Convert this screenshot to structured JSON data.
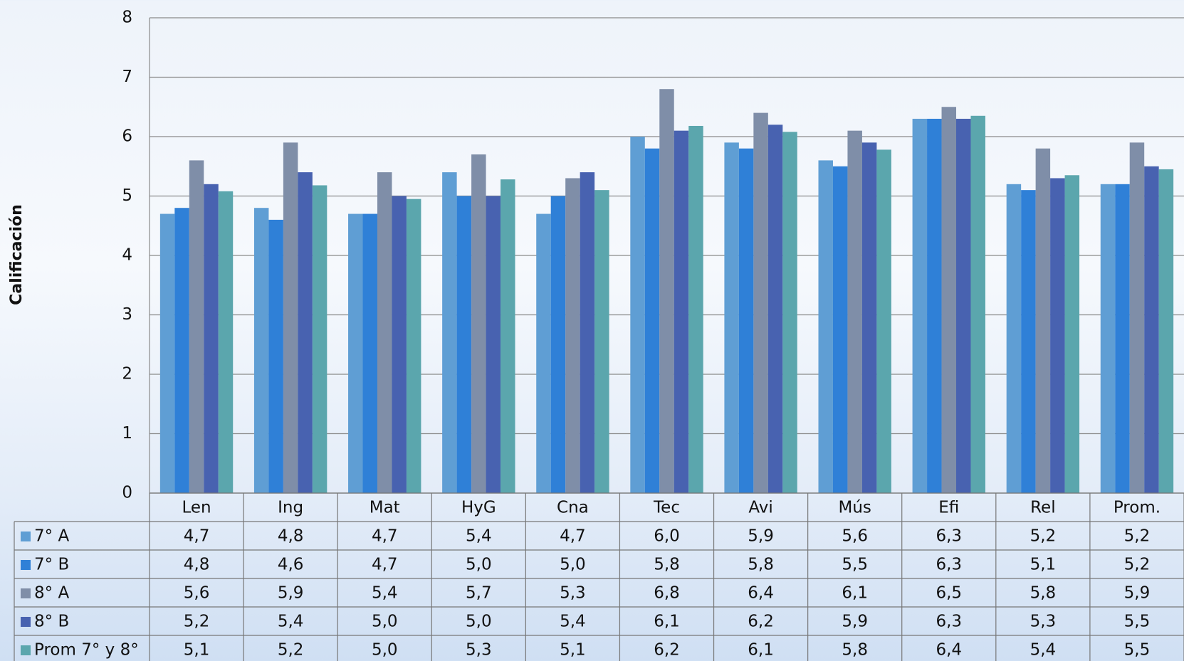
{
  "chart_data": {
    "type": "bar",
    "y_label": "Calificación",
    "categories": [
      "Len",
      "Ing",
      "Mat",
      "HyG",
      "Cna",
      "Tec",
      "Avi",
      "Mús",
      "Efi",
      "Rel",
      "Prom."
    ],
    "series": [
      {
        "name": "7° A",
        "color": "#5f9ed4",
        "values": [
          4.7,
          4.8,
          4.7,
          5.4,
          4.7,
          6.0,
          5.9,
          5.6,
          6.3,
          5.2,
          5.2
        ],
        "value_labels": [
          "4,7",
          "4,8",
          "4,7",
          "5,4",
          "4,7",
          "6,0",
          "5,9",
          "5,6",
          "6,3",
          "5,2",
          "5,2"
        ]
      },
      {
        "name": "7° B",
        "color": "#2f80d7",
        "values": [
          4.8,
          4.6,
          4.7,
          5.0,
          5.0,
          5.8,
          5.8,
          5.5,
          6.3,
          5.1,
          5.2
        ],
        "value_labels": [
          "4,8",
          "4,6",
          "4,7",
          "5,0",
          "5,0",
          "5,8",
          "5,8",
          "5,5",
          "6,3",
          "5,1",
          "5,2"
        ]
      },
      {
        "name": "8° A",
        "color": "#7f8ea8",
        "values": [
          5.6,
          5.9,
          5.4,
          5.7,
          5.3,
          6.8,
          6.4,
          6.1,
          6.5,
          5.8,
          5.9
        ],
        "value_labels": [
          "5,6",
          "5,9",
          "5,4",
          "5,7",
          "5,3",
          "6,8",
          "6,4",
          "6,1",
          "6,5",
          "5,8",
          "5,9"
        ]
      },
      {
        "name": "8° B",
        "color": "#4862b0",
        "values": [
          5.2,
          5.4,
          5.0,
          5.0,
          5.4,
          6.1,
          6.2,
          5.9,
          6.3,
          5.3,
          5.5
        ],
        "value_labels": [
          "5,2",
          "5,4",
          "5,0",
          "5,0",
          "5,4",
          "6,1",
          "6,2",
          "5,9",
          "6,3",
          "5,3",
          "5,5"
        ]
      },
      {
        "name": "Prom 7° y 8°",
        "color": "#5ba6ad",
        "values": [
          5.08,
          5.18,
          4.95,
          5.28,
          5.1,
          6.18,
          6.08,
          5.78,
          6.35,
          5.35,
          5.45
        ],
        "value_labels": [
          "5,1",
          "5,2",
          "5,0",
          "5,3",
          "5,1",
          "6,2",
          "6,1",
          "5,8",
          "6,4",
          "5,4",
          "5,5"
        ]
      }
    ],
    "ylim": [
      0,
      8
    ],
    "yticks": [
      0,
      1,
      2,
      3,
      4,
      5,
      6,
      7,
      8
    ],
    "grid": true
  }
}
